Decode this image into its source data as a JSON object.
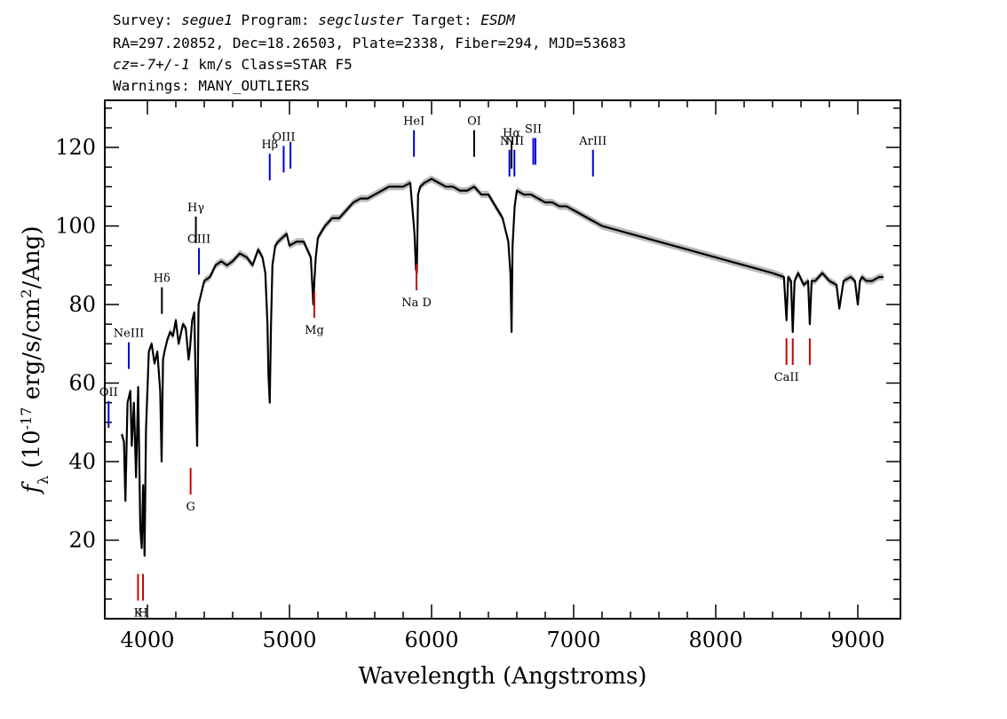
{
  "header": {
    "line1": {
      "survey_label": "Survey: ",
      "survey": "segue1",
      "program_label": " Program: ",
      "program": "segcluster",
      "target_label": " Target: ",
      "target": "ESDM"
    },
    "line2": "RA=297.20852, Dec=18.26503, Plate=2338, Fiber=294, MJD=53683",
    "line3": {
      "cz": "cz=-7+/-1",
      "rest": " km/s Class=STAR F5"
    },
    "line4": "Warnings: MANY_OUTLIERS"
  },
  "chart_data": {
    "type": "line",
    "xlabel": "Wavelength (Angstroms)",
    "ylabel": "f_λ (10^-17 erg/s/cm^2/Ang)",
    "xlim": [
      3700,
      9300
    ],
    "ylim": [
      0,
      132
    ],
    "x_ticks": [
      4000,
      5000,
      6000,
      7000,
      8000,
      9000
    ],
    "y_ticks": [
      20,
      40,
      60,
      80,
      100,
      120
    ],
    "series": [
      {
        "color": "#000000",
        "x": [
          3820,
          3835,
          3845,
          3860,
          3880,
          3890,
          3905,
          3920,
          3935,
          3950,
          3960,
          3970,
          3980,
          3990,
          4010,
          4030,
          4050,
          4070,
          4090,
          4100,
          4110,
          4120,
          4140,
          4160,
          4180,
          4200,
          4220,
          4250,
          4270,
          4290,
          4300,
          4315,
          4330,
          4340,
          4350,
          4360,
          4380,
          4400,
          4440,
          4480,
          4520,
          4560,
          4600,
          4650,
          4700,
          4740,
          4780,
          4810,
          4830,
          4845,
          4852,
          4861,
          4870,
          4880,
          4900,
          4920,
          4950,
          4980,
          5000,
          5050,
          5100,
          5150,
          5168,
          5175,
          5185,
          5200,
          5250,
          5300,
          5350,
          5400,
          5450,
          5500,
          5550,
          5600,
          5650,
          5700,
          5750,
          5800,
          5850,
          5880,
          5890,
          5896,
          5905,
          5920,
          5950,
          6000,
          6050,
          6100,
          6150,
          6200,
          6250,
          6300,
          6350,
          6400,
          6450,
          6500,
          6540,
          6555,
          6563,
          6570,
          6585,
          6600,
          6650,
          6700,
          6750,
          6800,
          6850,
          6900,
          6950,
          7000,
          7100,
          7200,
          7300,
          7400,
          7500,
          7600,
          7700,
          7800,
          7900,
          8000,
          8100,
          8200,
          8300,
          8400,
          8480,
          8498,
          8510,
          8530,
          8542,
          8555,
          8580,
          8620,
          8650,
          8662,
          8675,
          8700,
          8750,
          8800,
          8850,
          8870,
          8900,
          8950,
          8980,
          9000,
          9015,
          9030,
          9060,
          9100,
          9150,
          9180
        ],
        "y": [
          47,
          45,
          30,
          55,
          58,
          44,
          55,
          36,
          59,
          23,
          18,
          34,
          16,
          48,
          68,
          70,
          65,
          68,
          58,
          40,
          66,
          68,
          71,
          73,
          72,
          76,
          70,
          75,
          74,
          66,
          69,
          76,
          78,
          60,
          44,
          80,
          83,
          86,
          87,
          90,
          91,
          90,
          91,
          93,
          92,
          90,
          94,
          92,
          88,
          75,
          62,
          55,
          75,
          90,
          95,
          96,
          97,
          98,
          95,
          96,
          96,
          92,
          80,
          86,
          92,
          97,
          100,
          102,
          102,
          104,
          106,
          107,
          107,
          108,
          109,
          110,
          110,
          110,
          111,
          98,
          89,
          88,
          108,
          110,
          111,
          112,
          111,
          110,
          110,
          109,
          109,
          110,
          108,
          108,
          105,
          102,
          96,
          88,
          73,
          95,
          105,
          109,
          108,
          108,
          107,
          106,
          106,
          105,
          105,
          104,
          102,
          100,
          99,
          98,
          97,
          96,
          95,
          94,
          93,
          92,
          91,
          90,
          89,
          88,
          87,
          76,
          87,
          86,
          73,
          86,
          88,
          85,
          86,
          75,
          86,
          86,
          88,
          86,
          85,
          79,
          86,
          87,
          86,
          80,
          86,
          87,
          86,
          86,
          87,
          87
        ]
      }
    ],
    "markers": [
      {
        "label": "OII",
        "x": 3727,
        "y": 52,
        "color": "#0000cc",
        "above": true
      },
      {
        "label": "NeIII",
        "x": 3869,
        "y": 67,
        "color": "#0000cc",
        "above": true
      },
      {
        "label": "Hδ",
        "x": 4102,
        "y": 81,
        "color": "#000000",
        "above": true
      },
      {
        "label": "Hγ",
        "x": 4341,
        "y": 99,
        "color": "#000000",
        "above": true
      },
      {
        "label": "OIII",
        "x": 4363,
        "y": 91,
        "color": "#0000cc",
        "above": true
      },
      {
        "label": "Hβ",
        "x": 4861,
        "y": 115,
        "color": "#0000cc",
        "above": true
      },
      {
        "label": "OIII",
        "x": 4959,
        "y": 117,
        "color": "#0000cc",
        "above": true
      },
      {
        "label": "",
        "x": 5007,
        "y": 118,
        "color": "#0000cc",
        "above": true
      },
      {
        "label": "HeI",
        "x": 5876,
        "y": 121,
        "color": "#0000cc",
        "above": true
      },
      {
        "label": "OI",
        "x": 6300,
        "y": 121,
        "color": "#000000",
        "above": true
      },
      {
        "label": "NII",
        "x": 6548,
        "y": 116,
        "color": "#0000cc",
        "above": true
      },
      {
        "label": "Hα",
        "x": 6563,
        "y": 118,
        "color": "#000000",
        "above": true
      },
      {
        "label": "NII",
        "x": 6583,
        "y": 116,
        "color": "#0000cc",
        "above": true
      },
      {
        "label": "SII",
        "x": 6716,
        "y": 119,
        "color": "#0000cc",
        "above": true
      },
      {
        "label": "",
        "x": 6731,
        "y": 119,
        "color": "#0000cc",
        "above": true
      },
      {
        "label": "ArIII",
        "x": 7136,
        "y": 116,
        "color": "#0000cc",
        "above": true
      },
      {
        "label": "K",
        "x": 3934,
        "y": 8,
        "color": "#cc0000",
        "above": false
      },
      {
        "label": "H",
        "x": 3969,
        "y": 8,
        "color": "#cc0000",
        "above": false
      },
      {
        "label": "G",
        "x": 4304,
        "y": 35,
        "color": "#cc0000",
        "above": false
      },
      {
        "label": "Mg",
        "x": 5175,
        "y": 80,
        "color": "#cc0000",
        "above": false
      },
      {
        "label": "Na D",
        "x": 5894,
        "y": 87,
        "color": "#cc0000",
        "above": false
      },
      {
        "label": "CaII",
        "x": 8498,
        "y": 68,
        "color": "#cc0000",
        "above": false
      },
      {
        "label": "",
        "x": 8542,
        "y": 68,
        "color": "#cc0000",
        "above": false
      },
      {
        "label": "",
        "x": 8662,
        "y": 68,
        "color": "#cc0000",
        "above": false
      }
    ]
  }
}
